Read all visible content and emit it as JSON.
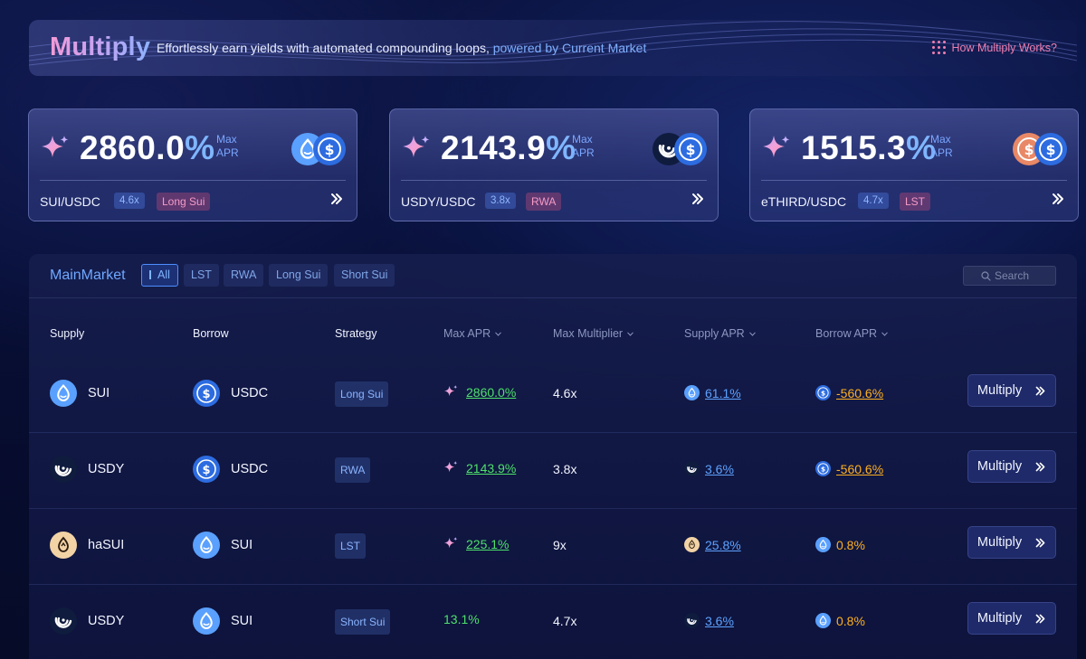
{
  "header": {
    "title": "Multiply",
    "subtitle_prefix": "Effortlessly earn yields with automated compounding loops,",
    "subtitle_highlight": "powered by Current Market",
    "help_link": "How Multiply Works?"
  },
  "cards": [
    {
      "apr_number": "2860.0",
      "apr_unit": "%",
      "max_label_1": "Max",
      "max_label_2": "APR",
      "pair": "SUI/USDC",
      "multiplier": "4.6x",
      "strategy": "Long Sui",
      "icons": [
        "sui-coin-icon",
        "usdc-coin-icon"
      ]
    },
    {
      "apr_number": "2143.9",
      "apr_unit": "%",
      "max_label_1": "Max",
      "max_label_2": "APR",
      "pair": "USDY/USDC",
      "multiplier": "3.8x",
      "strategy": "RWA",
      "icons": [
        "usdy-coin-icon",
        "usdc-coin-icon"
      ]
    },
    {
      "apr_number": "1515.3",
      "apr_unit": "%",
      "max_label_1": "Max",
      "max_label_2": "APR",
      "pair": "eTHIRD/USDC",
      "multiplier": "4.7x",
      "strategy": "LST",
      "icons": [
        "ethird-coin-icon",
        "usdc-coin-icon"
      ]
    }
  ],
  "market": {
    "title": "MainMarket",
    "filters": [
      "All",
      "LST",
      "RWA",
      "Long Sui",
      "Short Sui"
    ],
    "active_filter": "All",
    "search_placeholder": "Search",
    "columns": [
      "Supply",
      "Borrow",
      "Strategy",
      "Max APR",
      "Max Multiplier",
      "Supply APR",
      "Borrow APR"
    ],
    "action_label": "Multiply",
    "rows": [
      {
        "supply": "SUI",
        "borrow": "USDC",
        "strategy": "Long Sui",
        "max_apr": "2860.0%",
        "max_multiplier": "4.6x",
        "supply_apr": "61.1%",
        "borrow_apr": "-560.6%"
      },
      {
        "supply": "USDY",
        "borrow": "USDC",
        "strategy": "RWA",
        "max_apr": "2143.9%",
        "max_multiplier": "3.8x",
        "supply_apr": "3.6%",
        "borrow_apr": "-560.6%"
      },
      {
        "supply": "haSUI",
        "borrow": "SUI",
        "strategy": "LST",
        "max_apr": "225.1%",
        "max_multiplier": "9x",
        "supply_apr": "25.8%",
        "borrow_apr": "0.8%"
      },
      {
        "supply": "USDY",
        "borrow": "SUI",
        "strategy": "Short Sui",
        "max_apr": "13.1%",
        "max_multiplier": "4.7x",
        "supply_apr": "3.6%",
        "borrow_apr": "0.8%"
      }
    ]
  },
  "colors": {
    "accent_blue": "#6fa8ff",
    "positive_green": "#4ee06b",
    "negative_orange": "#ffb020",
    "pink": "#f07fb0"
  }
}
